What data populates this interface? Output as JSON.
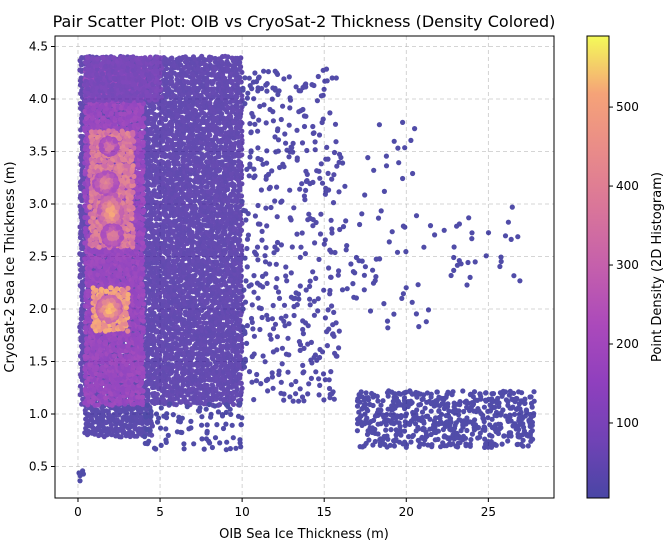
{
  "chart_data": {
    "type": "scatter",
    "title": "Pair Scatter Plot: OIB vs CryoSat-2 Thickness (Density Colored)",
    "xlabel": "OIB Sea Ice Thickness (m)",
    "ylabel": "CryoSat-2 Sea Ice Thickness (m)",
    "xlim": [
      -1.4,
      29.0
    ],
    "ylim": [
      0.2,
      4.6
    ],
    "x_ticks": [
      0,
      5,
      10,
      15,
      20,
      25
    ],
    "y_ticks": [
      0.5,
      1.0,
      1.5,
      2.0,
      2.5,
      3.0,
      3.5,
      4.0,
      4.5
    ],
    "x_tick_labels": [
      "0",
      "5",
      "10",
      "15",
      "20",
      "25"
    ],
    "y_tick_labels": [
      "0.5",
      "1.0",
      "1.5",
      "2.0",
      "2.5",
      "3.0",
      "3.5",
      "4.0",
      "4.5"
    ],
    "grid": true,
    "colormap": "plasma",
    "colorbar": {
      "label": "Point Density (2D Histogram)",
      "range": [
        5,
        590
      ],
      "ticks": [
        100,
        200,
        300,
        400,
        500
      ],
      "tick_labels": [
        "100",
        "200",
        "300",
        "400",
        "500"
      ]
    },
    "density_regions": [
      {
        "x_range": [
          0.2,
          10.0
        ],
        "y_range": [
          1.1,
          4.4
        ],
        "density": 40
      },
      {
        "x_range": [
          0.5,
          4.5
        ],
        "y_range": [
          0.8,
          1.1
        ],
        "density": 25
      },
      {
        "x_range": [
          0.5,
          4.0
        ],
        "y_range": [
          1.1,
          4.3
        ],
        "density": 150
      },
      {
        "x_range": [
          0.5,
          5.0
        ],
        "y_range": [
          4.0,
          4.4
        ],
        "density": 80
      },
      {
        "x_range": [
          0.8,
          3.5
        ],
        "y_range": [
          2.6,
          3.7
        ],
        "density": 330
      },
      {
        "x_range": [
          1.0,
          3.0
        ],
        "y_range": [
          1.8,
          2.2
        ],
        "density": 430
      }
    ],
    "hotspots": [
      {
        "x": 1.9,
        "y": 2.0,
        "sx": 0.7,
        "sy": 0.12,
        "density": 580
      },
      {
        "x": 2.0,
        "y": 2.92,
        "sx": 0.7,
        "sy": 0.18,
        "density": 520
      },
      {
        "x": 1.7,
        "y": 3.2,
        "sx": 0.7,
        "sy": 0.1,
        "density": 420
      },
      {
        "x": 1.9,
        "y": 3.55,
        "sx": 0.5,
        "sy": 0.08,
        "density": 380
      },
      {
        "x": 2.1,
        "y": 2.7,
        "sx": 0.6,
        "sy": 0.1,
        "density": 400
      }
    ],
    "sparse_clusters": [
      {
        "x_range": [
          10.0,
          16.0
        ],
        "y_range": [
          1.1,
          4.3
        ],
        "count": 420,
        "density": 10
      },
      {
        "x_range": [
          16.0,
          21.5
        ],
        "y_range": [
          1.8,
          3.8
        ],
        "count": 70,
        "density": 5
      },
      {
        "x_range": [
          21.5,
          27.5
        ],
        "y_range": [
          2.2,
          3.0
        ],
        "count": 30,
        "density": 5
      },
      {
        "x_range": [
          17.0,
          27.8
        ],
        "y_range": [
          0.68,
          1.22
        ],
        "count": 600,
        "density": 8
      },
      {
        "x_range": [
          4.0,
          10.0
        ],
        "y_range": [
          0.66,
          1.1
        ],
        "count": 90,
        "density": 6
      },
      {
        "x_range": [
          0.0,
          0.4
        ],
        "y_range": [
          0.36,
          0.5
        ],
        "count": 5,
        "density": 5
      }
    ]
  }
}
